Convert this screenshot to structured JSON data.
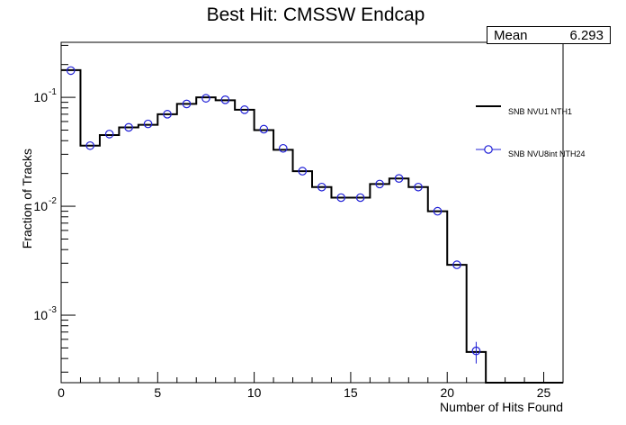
{
  "chart_data": {
    "type": "step",
    "title": "Best Hit: CMSSW Endcap",
    "xlabel": "Number of Hits Found",
    "ylabel": "Fraction of Tracks",
    "xlim": [
      0,
      26
    ],
    "ylim": [
      0.00024,
      0.32
    ],
    "ylog": true,
    "xticks": [
      0,
      5,
      10,
      15,
      20,
      25
    ],
    "ytick_labels": [
      {
        "value": 0.1,
        "base": "10",
        "exp": "-1"
      },
      {
        "value": 0.01,
        "base": "10",
        "exp": "-2"
      },
      {
        "value": 0.001,
        "base": "10",
        "exp": "-3"
      }
    ],
    "stats": {
      "label": "Mean",
      "value": "6.293"
    },
    "legend_position": "right",
    "bin_edges": [
      0,
      1,
      2,
      3,
      4,
      5,
      6,
      7,
      8,
      9,
      10,
      11,
      12,
      13,
      14,
      15,
      16,
      17,
      18,
      19,
      20,
      21,
      22,
      23,
      24,
      25,
      26
    ],
    "series": [
      {
        "name": "SNB NVU1 NTH1",
        "style": "histogram-line",
        "color": "#000000",
        "values": [
          0.178,
          0.036,
          0.045,
          0.053,
          0.056,
          0.07,
          0.087,
          0.1,
          0.094,
          0.077,
          0.05,
          0.033,
          0.021,
          0.015,
          0.012,
          0.012,
          0.016,
          0.018,
          0.015,
          0.009,
          0.0029,
          0.00046,
          0.0002,
          0.0002,
          0.0002,
          0.0002
        ]
      },
      {
        "name": "SNB NVU8int NTH24",
        "style": "markers-open-circle",
        "color": "#1f1fd6",
        "x": [
          0.5,
          1.5,
          2.5,
          3.5,
          4.5,
          5.5,
          6.5,
          7.5,
          8.5,
          9.5,
          10.5,
          11.5,
          12.5,
          13.5,
          14.5,
          15.5,
          16.5,
          17.5,
          18.5,
          19.5,
          20.5,
          21.5
        ],
        "values": [
          0.176,
          0.036,
          0.046,
          0.053,
          0.057,
          0.07,
          0.087,
          0.098,
          0.095,
          0.077,
          0.051,
          0.034,
          0.021,
          0.015,
          0.012,
          0.012,
          0.016,
          0.018,
          0.015,
          0.009,
          0.0029,
          0.00047
        ]
      }
    ]
  }
}
